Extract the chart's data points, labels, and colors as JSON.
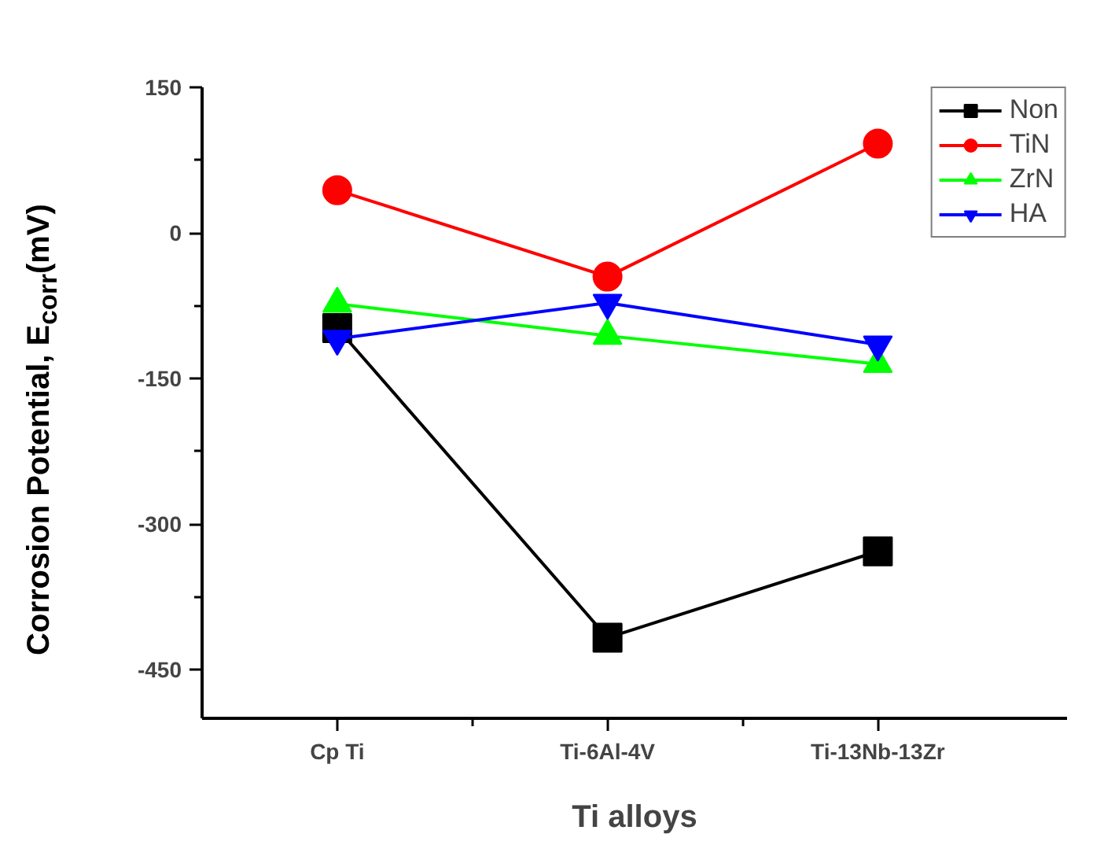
{
  "chart_data": {
    "type": "line",
    "xlabel": "Ti alloys",
    "ylabel": "Corrosion Potential, E$_{corr}$(mV)",
    "categories": [
      "Cp Ti",
      "Ti-6Al-4V",
      "Ti-13Nb-13Zr"
    ],
    "ylim": [
      -500,
      150
    ],
    "yticks": [
      -450,
      -300,
      -150,
      0,
      150
    ],
    "series": [
      {
        "name": "Non",
        "color": "#000000",
        "marker": "square",
        "values": [
          -98,
          -417,
          -328
        ]
      },
      {
        "name": "TiN",
        "color": "#ff0000",
        "marker": "circle",
        "values": [
          44,
          -45,
          92
        ]
      },
      {
        "name": "ZrN",
        "color": "#00ff00",
        "marker": "triangle",
        "values": [
          -73,
          -106,
          -135
        ]
      },
      {
        "name": "HA",
        "color": "#0000ff",
        "marker": "triangle_down",
        "values": [
          -109,
          -72,
          -115
        ]
      }
    ],
    "legend": "top right",
    "grid": false,
    "line_style": "solid"
  }
}
